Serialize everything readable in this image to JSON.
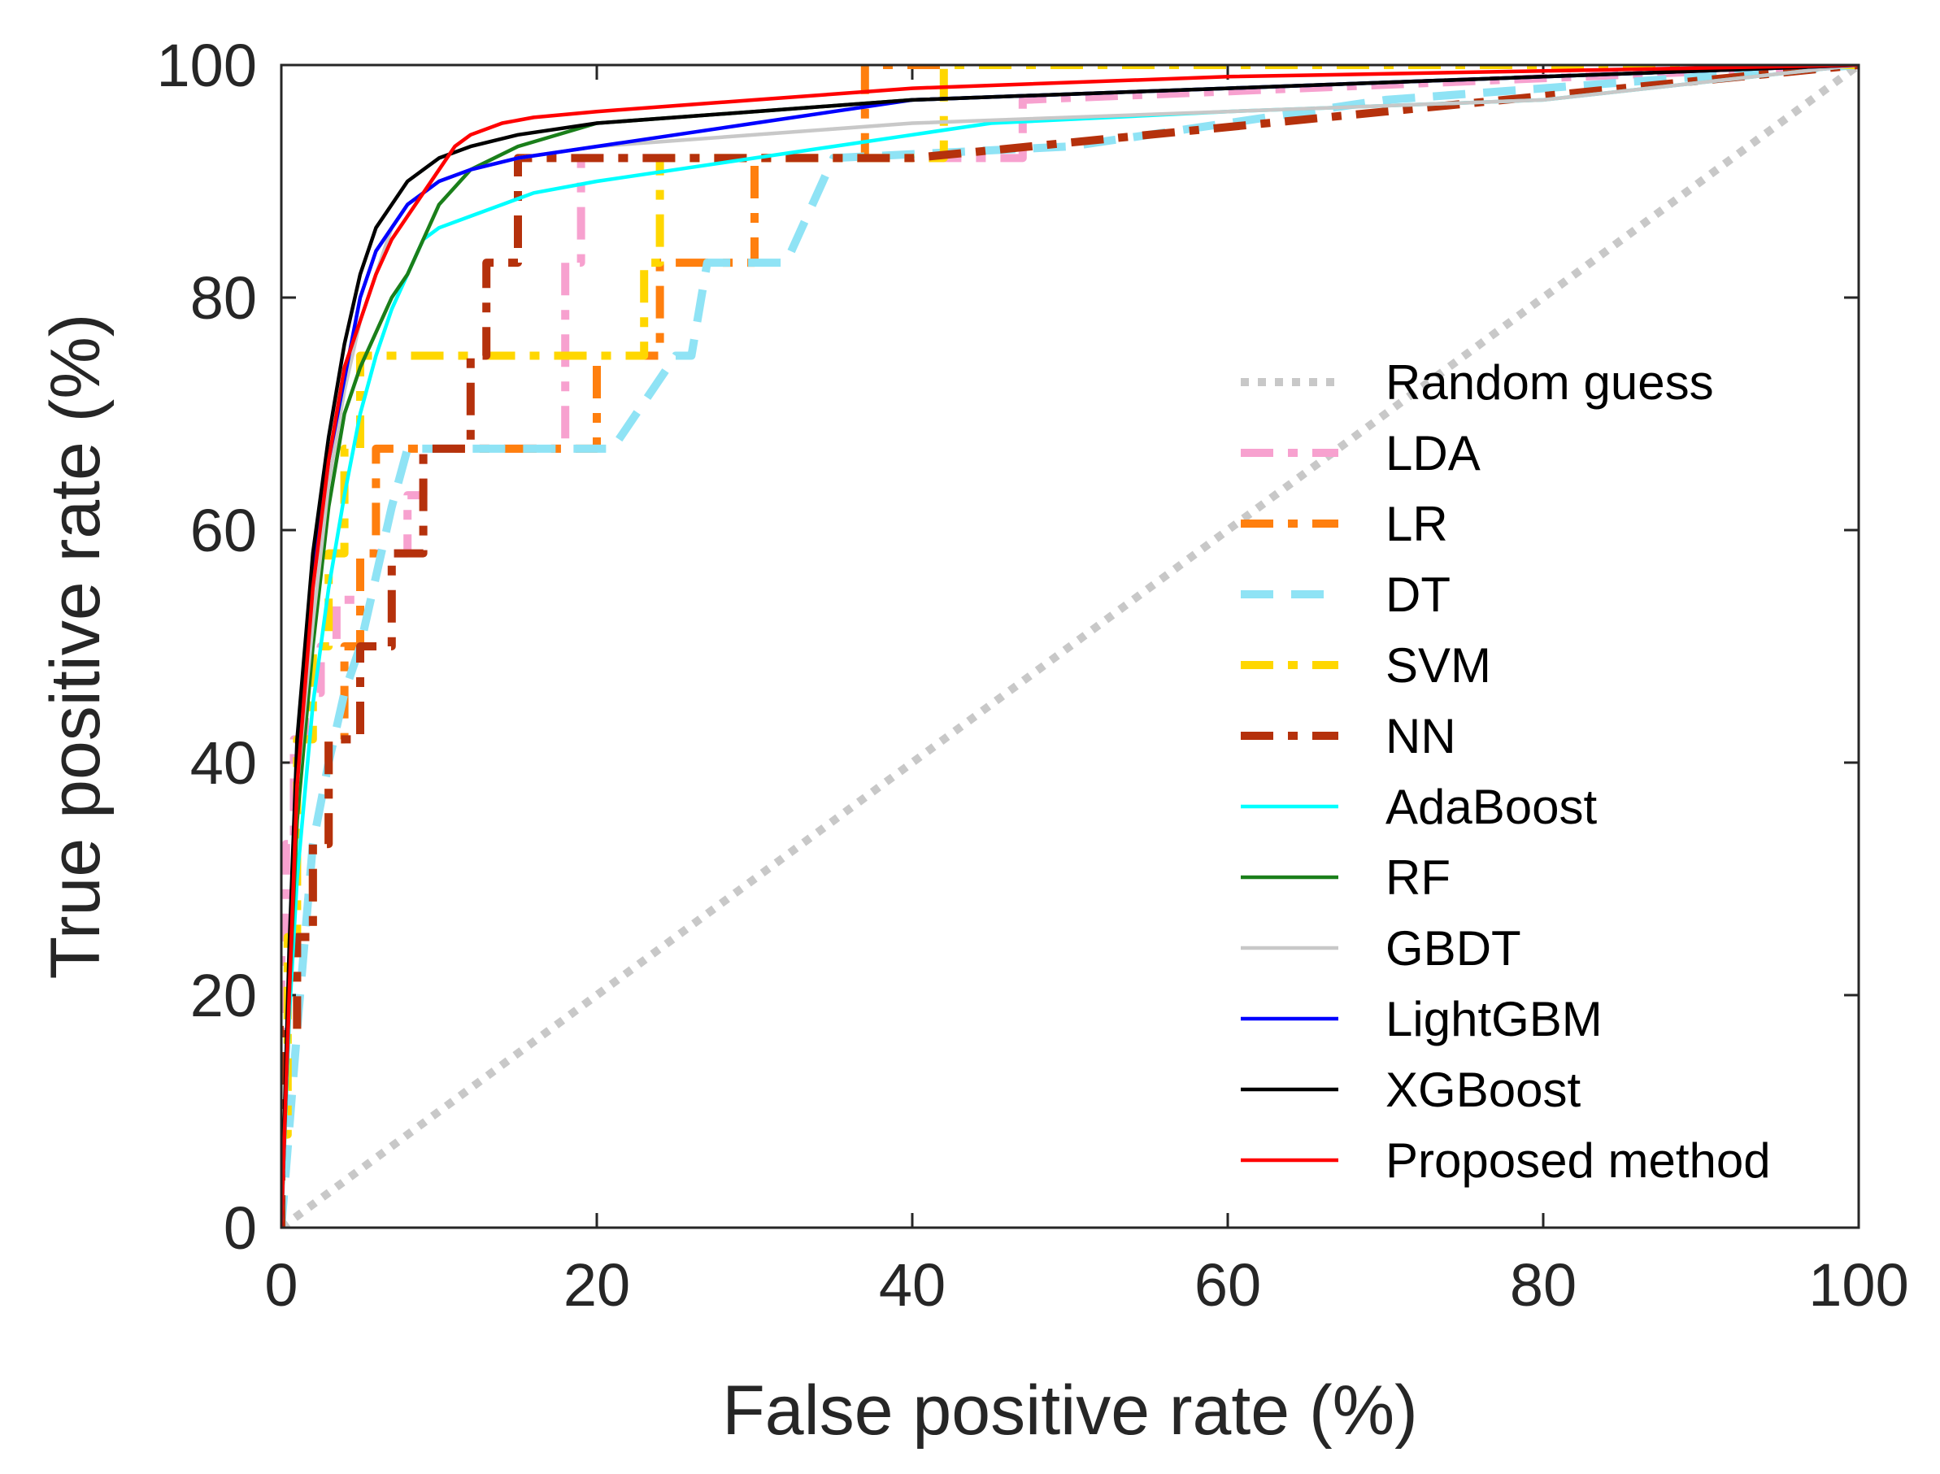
{
  "chart_data": {
    "type": "line",
    "title": "",
    "xlabel": "False positive rate (%)",
    "ylabel": "True positive rate (%)",
    "xlim": [
      0,
      100
    ],
    "ylim": [
      0,
      100
    ],
    "xticks": [
      0,
      20,
      40,
      60,
      80,
      100
    ],
    "yticks": [
      0,
      20,
      40,
      60,
      80,
      100
    ],
    "xtick_labels": [
      "0",
      "20",
      "40",
      "60",
      "80",
      "100"
    ],
    "ytick_labels": [
      "0",
      "20",
      "40",
      "60",
      "80",
      "100"
    ],
    "grid": false,
    "legend_position": "right",
    "series": [
      {
        "name": "Random guess",
        "color": "#c8c8c8",
        "style": "dotted",
        "x": [
          0,
          100
        ],
        "y": [
          0,
          100
        ]
      },
      {
        "name": "LDA",
        "color": "#f7a1cf",
        "style": "dashdot",
        "x": [
          0,
          0,
          0.3,
          0.3,
          0.8,
          0.8,
          1.5,
          1.5,
          2.5,
          2.5,
          3.5,
          3.5,
          5,
          5,
          8,
          8,
          9,
          9,
          18,
          18,
          19,
          19,
          21,
          21,
          40,
          47,
          47,
          100
        ],
        "y": [
          0,
          25,
          25,
          33,
          33,
          42,
          42,
          46,
          46,
          50,
          50,
          54,
          54,
          58,
          58,
          63,
          63,
          67,
          67,
          83,
          83,
          92,
          92,
          92,
          92,
          92,
          97,
          100
        ]
      },
      {
        "name": "LR",
        "color": "#ff7f0e",
        "style": "dashdot",
        "x": [
          0,
          0,
          1,
          1,
          2,
          2,
          3,
          3,
          4,
          4,
          5,
          5,
          6,
          6,
          20,
          20,
          24,
          24,
          30,
          30,
          37,
          37,
          38,
          100
        ],
        "y": [
          0,
          17,
          17,
          25,
          25,
          33,
          33,
          42,
          42,
          50,
          50,
          58,
          58,
          67,
          67,
          75,
          75,
          83,
          83,
          92,
          92,
          100,
          100,
          100
        ]
      },
      {
        "name": "DT",
        "color": "#8fe3f5",
        "style": "dashed",
        "x": [
          0,
          1,
          2,
          3,
          4,
          5,
          6,
          7,
          8,
          21,
          22,
          25,
          26,
          27,
          32,
          35,
          50,
          60,
          70,
          100
        ],
        "y": [
          0,
          17,
          33,
          40,
          46,
          50,
          56,
          62,
          67,
          67,
          69,
          75,
          75,
          83,
          83,
          92,
          93,
          95,
          97,
          100
        ]
      },
      {
        "name": "SVM",
        "color": "#ffd700",
        "style": "dashdot",
        "x": [
          0,
          0,
          0.4,
          0.4,
          1,
          1,
          2,
          2,
          3,
          3,
          4,
          4,
          5,
          5,
          23,
          23,
          24,
          24,
          38,
          40,
          42,
          42,
          47,
          47,
          100
        ],
        "y": [
          0,
          8,
          8,
          25,
          25,
          42,
          42,
          50,
          50,
          58,
          58,
          67,
          67,
          75,
          75,
          83,
          83,
          92,
          92,
          92,
          92,
          100,
          100,
          100,
          100
        ]
      },
      {
        "name": "NN",
        "color": "#b5310c",
        "style": "dashdot",
        "x": [
          0,
          0,
          1,
          1,
          2,
          2,
          3,
          3,
          5,
          5,
          7,
          7,
          9,
          9,
          12,
          12,
          13,
          13,
          15,
          15,
          40,
          70,
          100
        ],
        "y": [
          0,
          17,
          17,
          25,
          25,
          33,
          33,
          42,
          42,
          50,
          50,
          58,
          58,
          67,
          67,
          75,
          75,
          83,
          83,
          92,
          92,
          96,
          100
        ]
      },
      {
        "name": "AdaBoost",
        "color": "#00ffff",
        "style": "solid",
        "x": [
          0,
          0.5,
          1,
          2,
          3,
          4,
          5,
          6,
          7,
          8,
          9,
          10,
          12,
          14,
          16,
          20,
          25,
          30,
          35,
          40,
          45,
          60,
          80,
          100
        ],
        "y": [
          0,
          18,
          30,
          45,
          55,
          63,
          70,
          75,
          79,
          82,
          85,
          86,
          87,
          88,
          89,
          90,
          91,
          92,
          93,
          94,
          95,
          96,
          97,
          100
        ]
      },
      {
        "name": "RF",
        "color": "#1a7f1a",
        "style": "solid",
        "x": [
          0,
          0.5,
          1,
          2,
          3,
          4,
          5,
          6,
          7,
          8,
          9,
          10,
          12,
          15,
          20,
          30,
          40,
          60,
          80,
          100
        ],
        "y": [
          0,
          20,
          35,
          50,
          62,
          70,
          74,
          77,
          80,
          82,
          85,
          88,
          91,
          93,
          95,
          96,
          97,
          98,
          99,
          100
        ]
      },
      {
        "name": "GBDT",
        "color": "#c8c8c8",
        "style": "solid",
        "x": [
          0,
          0.5,
          1,
          2,
          3,
          4,
          5,
          6,
          7,
          8,
          10,
          12,
          15,
          20,
          30,
          40,
          60,
          80,
          100
        ],
        "y": [
          0,
          22,
          38,
          52,
          64,
          72,
          78,
          82,
          86,
          88,
          90,
          91,
          92,
          93,
          94,
          95,
          96,
          97,
          100
        ]
      },
      {
        "name": "LightGBM",
        "color": "#0000ff",
        "style": "solid",
        "x": [
          0,
          0.5,
          1,
          2,
          3,
          4,
          5,
          6,
          7,
          8,
          10,
          12,
          15,
          20,
          25,
          30,
          40,
          60,
          80,
          100
        ],
        "y": [
          0,
          22,
          40,
          56,
          66,
          73,
          80,
          84,
          86,
          88,
          90,
          91,
          92,
          93,
          94,
          95,
          97,
          98,
          99,
          100
        ]
      },
      {
        "name": "XGBoost",
        "color": "#000000",
        "style": "solid",
        "x": [
          0,
          0.5,
          1,
          2,
          3,
          4,
          5,
          6,
          7,
          8,
          9,
          10,
          12,
          15,
          20,
          30,
          40,
          60,
          80,
          100
        ],
        "y": [
          0,
          24,
          42,
          58,
          68,
          76,
          82,
          86,
          88,
          90,
          91,
          92,
          93,
          94,
          95,
          96,
          97,
          98,
          99,
          100
        ]
      },
      {
        "name": "Proposed method",
        "color": "#ff0000",
        "style": "solid",
        "x": [
          0,
          0.5,
          1,
          2,
          3,
          4,
          5,
          6,
          7,
          8,
          9,
          10,
          11,
          12,
          14,
          16,
          20,
          25,
          30,
          40,
          60,
          80,
          100
        ],
        "y": [
          0,
          20,
          38,
          55,
          66,
          74,
          78,
          82,
          85,
          87,
          89,
          91,
          93,
          94,
          95,
          95.5,
          96,
          96.5,
          97,
          98,
          99,
          99.5,
          100
        ]
      }
    ]
  }
}
